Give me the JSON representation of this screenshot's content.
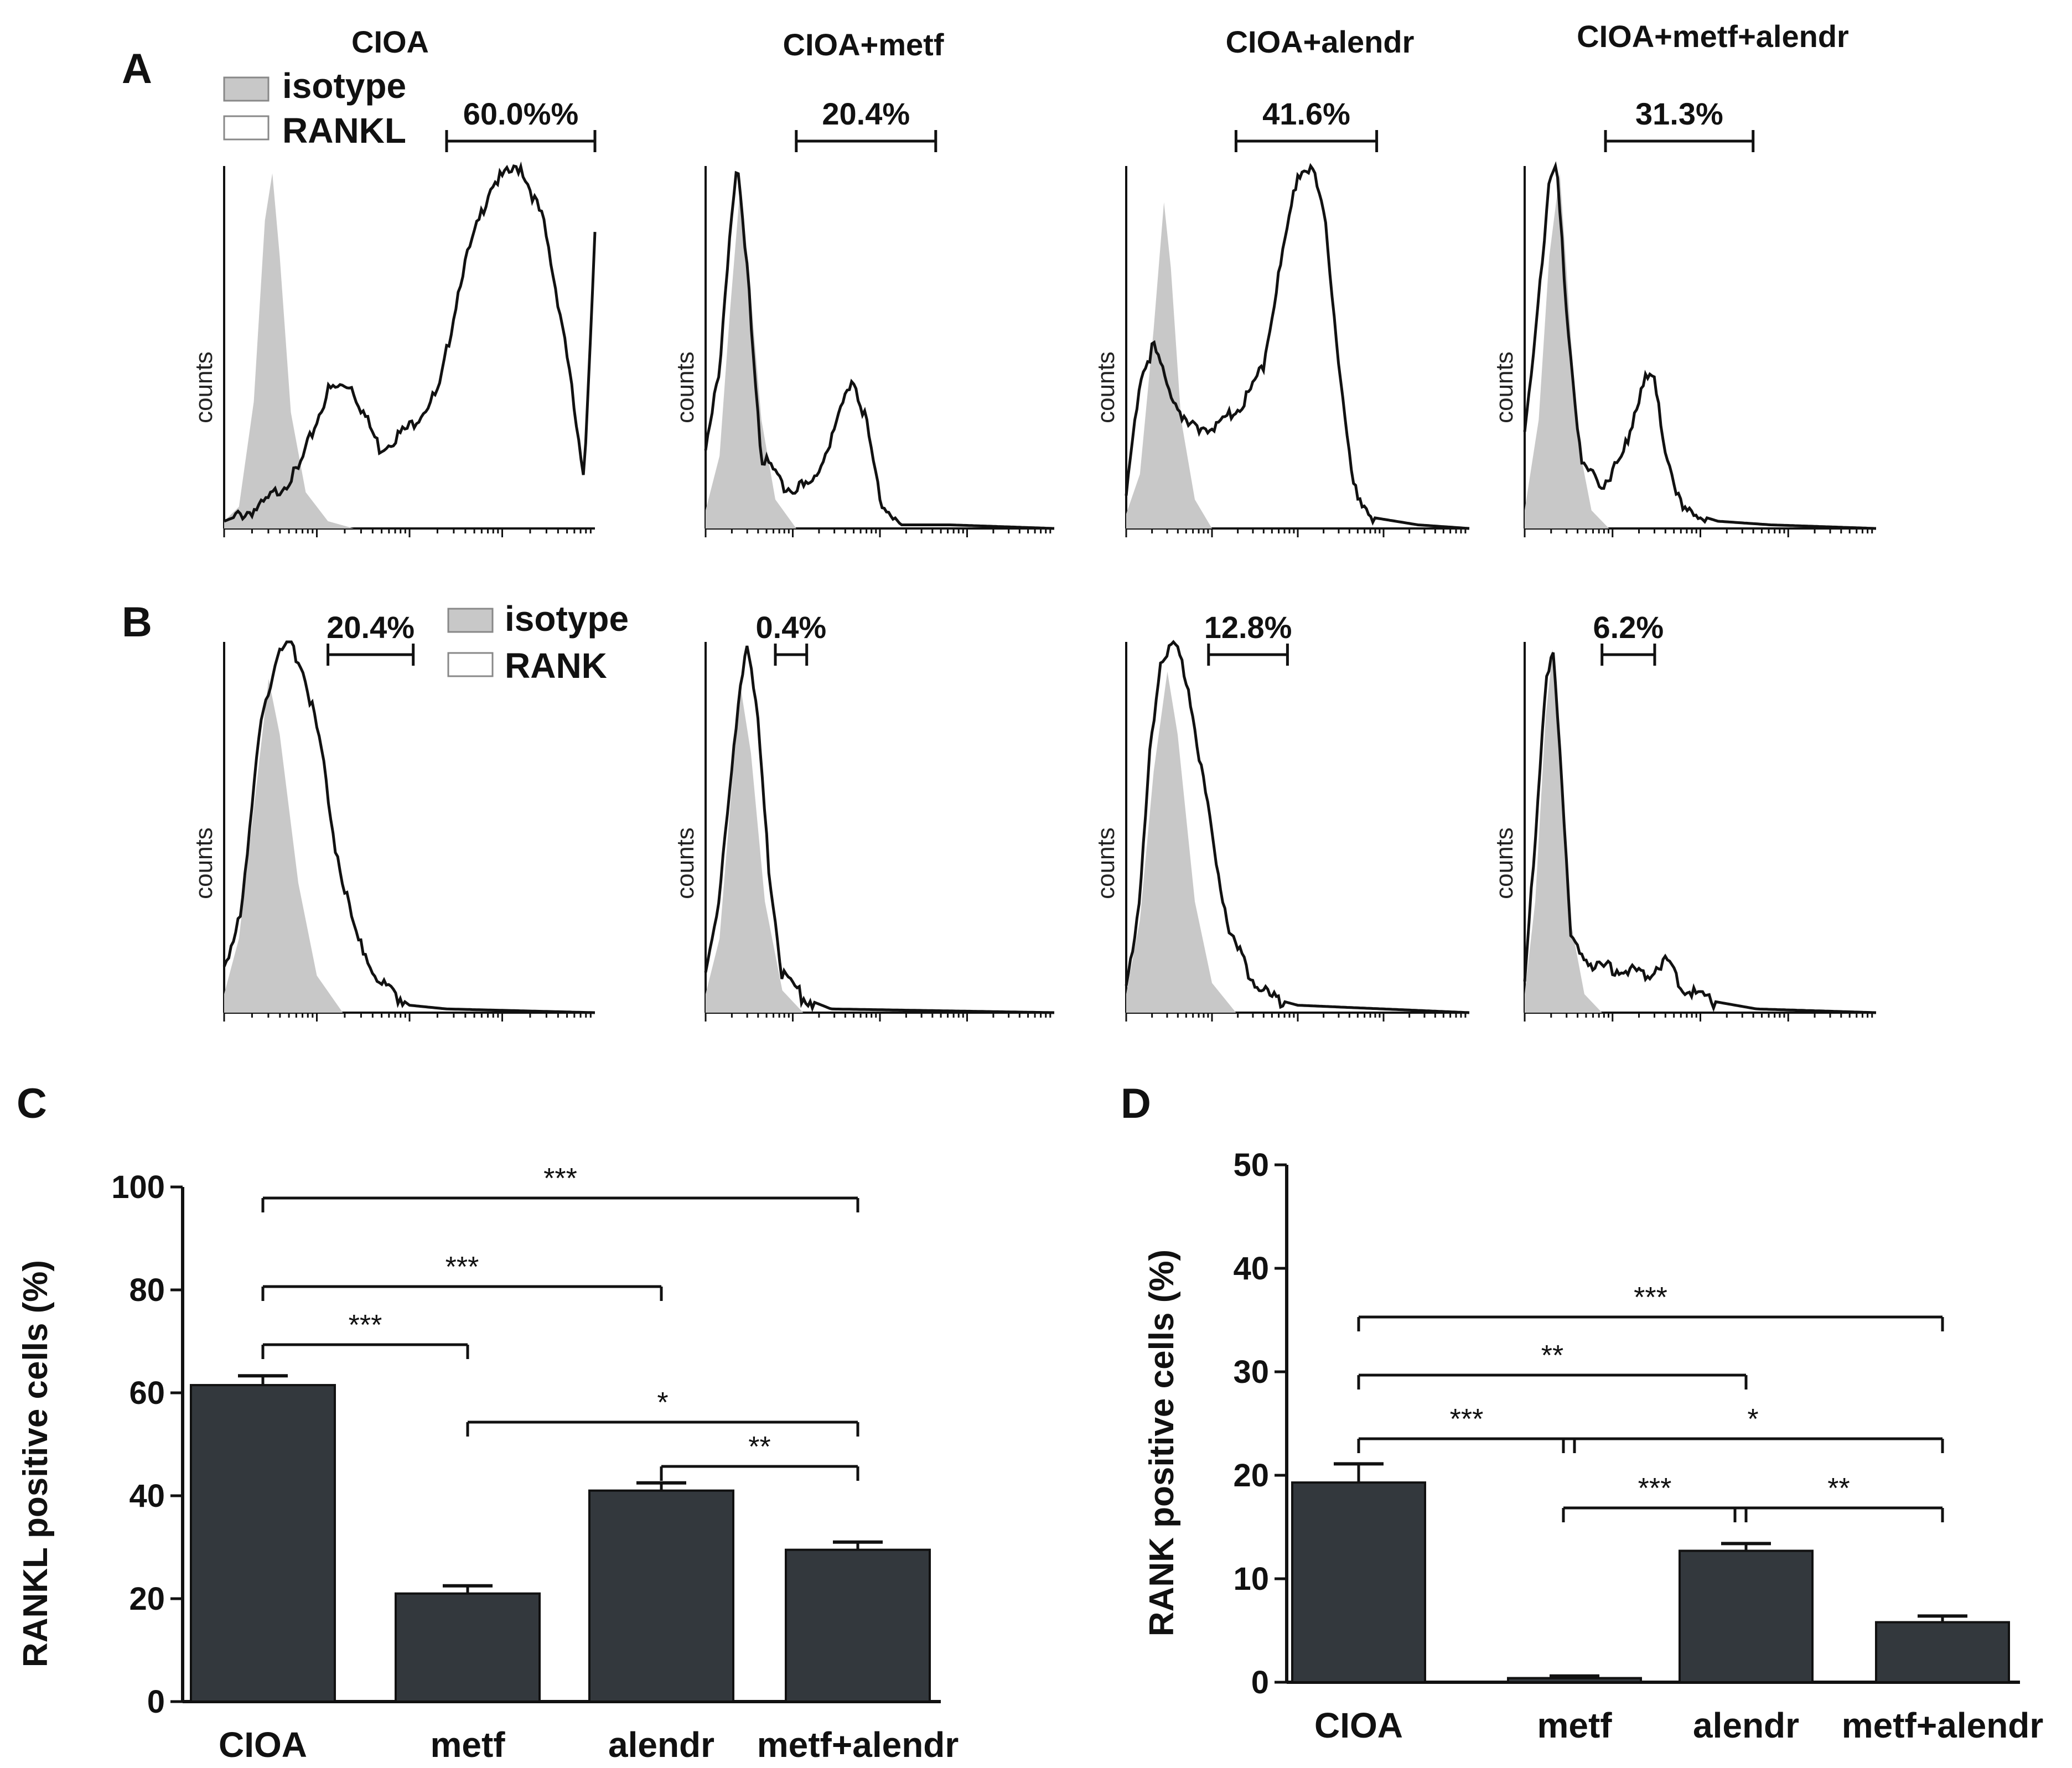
{
  "panel_labels": {
    "A": "A",
    "B": "B",
    "C": "C",
    "D": "D"
  },
  "legend_a": {
    "isotype": "isotype",
    "marker": "RANKL"
  },
  "legend_b": {
    "isotype": "isotype",
    "marker": "RANK"
  },
  "histogram_y_label": "counts",
  "colors": {
    "bar": "#33383d",
    "isotype_fill": "#c8c8c8",
    "line": "#111111"
  },
  "chart_data": [
    {
      "type": "histogram",
      "panel": "A",
      "marker": "RANKL",
      "titles": [
        "CIOA",
        "CIOA+metf",
        "CIOA+alendr",
        "CIOA+metf+alendr"
      ],
      "gate_percents": [
        "60.0%%",
        "20.4%",
        "41.6%",
        "31.3%"
      ],
      "ylabel": "counts"
    },
    {
      "type": "histogram",
      "panel": "B",
      "marker": "RANK",
      "gate_percents": [
        "20.4%",
        "0.4%",
        "12.8%",
        "6.2%"
      ],
      "ylabel": "counts"
    },
    {
      "type": "bar",
      "panel": "C",
      "categories": [
        "CIOA",
        "metf",
        "alendr",
        "metf+alendr"
      ],
      "values": [
        61.5,
        21,
        41,
        29.5
      ],
      "errors": [
        1.8,
        1.5,
        1.5,
        1.5
      ],
      "ylabel": "RANKL positive cells (%)",
      "ylim": [
        0,
        100
      ],
      "yticks": [
        "0",
        "20",
        "40",
        "60",
        "80",
        "100"
      ],
      "significance": [
        {
          "from": 0,
          "to": 3,
          "label": "***"
        },
        {
          "from": 0,
          "to": 2,
          "label": "***"
        },
        {
          "from": 0,
          "to": 1,
          "label": "***"
        },
        {
          "from": 1,
          "to": 3,
          "label": "*"
        },
        {
          "from": 2,
          "to": 3,
          "label": "**"
        }
      ]
    },
    {
      "type": "bar",
      "panel": "D",
      "categories": [
        "CIOA",
        "metf",
        "alendr",
        "metf+alendr"
      ],
      "values": [
        19.3,
        0.4,
        12.7,
        5.8
      ],
      "errors": [
        1.8,
        0.2,
        0.7,
        0.6
      ],
      "ylabel": "RANK positive cells (%)",
      "ylim": [
        0,
        50
      ],
      "yticks": [
        "0",
        "10",
        "20",
        "30",
        "40",
        "50"
      ],
      "significance": [
        {
          "from": 0,
          "to": 3,
          "label": "***"
        },
        {
          "from": 0,
          "to": 2,
          "label": "**"
        },
        {
          "from": 0,
          "to": 1,
          "label": "***"
        },
        {
          "from": 1,
          "to": 3,
          "label": "*"
        },
        {
          "from": 1,
          "to": 2,
          "label": "***"
        },
        {
          "from": 2,
          "to": 3,
          "label": "**"
        }
      ]
    }
  ]
}
